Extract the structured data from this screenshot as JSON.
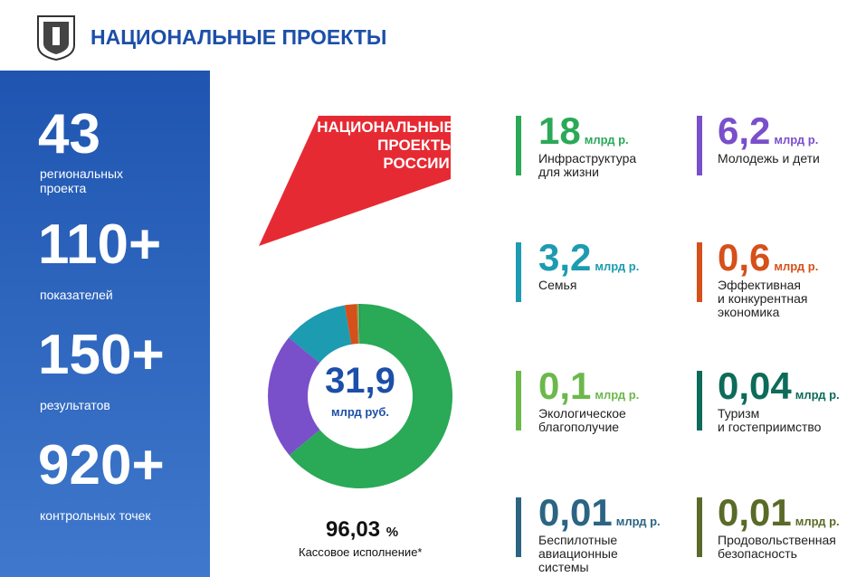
{
  "header": {
    "title": "НАЦИОНАЛЬНЫЕ ПРОЕКТЫ"
  },
  "stats": [
    {
      "value": "43",
      "label": "региональных\nпроекта"
    },
    {
      "value": "110+",
      "label": "показателей"
    },
    {
      "value": "150+",
      "label": "результатов"
    },
    {
      "value": "920+",
      "label": "контрольных точек"
    }
  ],
  "logo": {
    "lines": [
      "НАЦИОНАЛЬНЫЕ",
      "ПРОЕКТЫ",
      "РОССИИ"
    ]
  },
  "total": {
    "value": "31,9",
    "unit": "млрд руб."
  },
  "execution": {
    "value": "96,03",
    "unit": "%",
    "label": "Кассовое исполнение*"
  },
  "items": [
    {
      "value": 18,
      "value_label": "18",
      "unit": "млрд р.",
      "label": "Инфраструктура\nдля жизни",
      "color": "#2aa957"
    },
    {
      "value": 6.2,
      "value_label": "6,2",
      "unit": "млрд р.",
      "label": "Молодежь и дети",
      "color": "#7a4fca"
    },
    {
      "value": 3.2,
      "value_label": "3,2",
      "unit": "млрд р.",
      "label": "Семья",
      "color": "#1c9bb1"
    },
    {
      "value": 0.6,
      "value_label": "0,6",
      "unit": "млрд р.",
      "label": "Эффективная\nи конкурентная\nэкономика",
      "color": "#d5501a"
    },
    {
      "value": 0.1,
      "value_label": "0,1",
      "unit": "млрд р.",
      "label": "Экологическое\nблагополучие",
      "color": "#6cb84b"
    },
    {
      "value": 0.04,
      "value_label": "0,04",
      "unit": "млрд р.",
      "label": "Туризм\nи гостеприимство",
      "color": "#0d6b5a"
    },
    {
      "value": 0.01,
      "value_label": "0,01",
      "unit": "млрд р.",
      "label": "Беспилотные\nавиационные\nсистемы",
      "color": "#2b6583"
    },
    {
      "value": 0.01,
      "value_label": "0,01",
      "unit": "млрд р.",
      "label": "Продовольственная\nбезопасность",
      "color": "#5a6a28"
    }
  ]
}
